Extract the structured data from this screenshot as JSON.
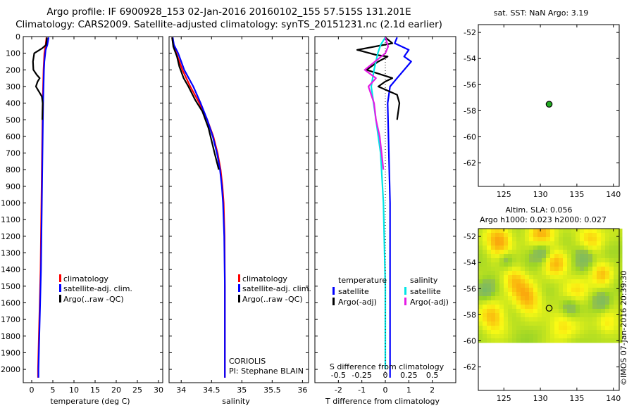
{
  "header": {
    "title_line1": "Argo profile: IF 6900928_153 02-Jan-2016 20160102_155 57.515S 131.201E",
    "title_line2": "Climatology: CARS2009. Satellite-adjusted climatology: synTS_20151231.nc (2.1d earlier)"
  },
  "colors": {
    "climatology": "#ff0000",
    "satellite": "#0000ff",
    "argo": "#000000",
    "sal_satellite": "#00e5e5",
    "sal_argo": "#e51be5",
    "float_marker": "#22aa22"
  },
  "credits": {
    "dac": "CORIOLIS",
    "pi": "PI: Stephane BLAIN",
    "imos": "©IMOS 07-Jan-2016 20:39:30"
  },
  "chart_data": [
    {
      "id": "temperature",
      "type": "line",
      "xlabel": "temperature (deg C)",
      "ylabel": "",
      "xlim": [
        -2,
        31
      ],
      "ylim": [
        2080,
        0
      ],
      "xticks": [
        0,
        5,
        10,
        15,
        20,
        25,
        30
      ],
      "yticks": [
        0,
        100,
        200,
        300,
        400,
        500,
        600,
        700,
        800,
        900,
        1000,
        1100,
        1200,
        1300,
        1400,
        1500,
        1600,
        1700,
        1800,
        1900,
        2000
      ],
      "legend": [
        "climatology",
        "satellite-adj. clim.",
        "Argo(..raw -QC)"
      ],
      "series": [
        {
          "name": "climatology",
          "color": "#ff0000",
          "points": [
            [
              3.5,
              5
            ],
            [
              3.3,
              50
            ],
            [
              3.0,
              100
            ],
            [
              2.8,
              200
            ],
            [
              2.7,
              300
            ],
            [
              2.6,
              400
            ],
            [
              2.5,
              600
            ],
            [
              2.4,
              800
            ],
            [
              2.3,
              1000
            ],
            [
              2.2,
              1200
            ],
            [
              2.1,
              1400
            ],
            [
              1.9,
              1600
            ],
            [
              1.7,
              1800
            ],
            [
              1.5,
              2000
            ],
            [
              1.5,
              2050
            ]
          ]
        },
        {
          "name": "satellite-adj. clim.",
          "color": "#0000ff",
          "points": [
            [
              4.0,
              5
            ],
            [
              3.7,
              50
            ],
            [
              3.3,
              80
            ],
            [
              3.0,
              150
            ],
            [
              2.9,
              200
            ],
            [
              2.8,
              300
            ],
            [
              2.7,
              400
            ],
            [
              2.6,
              600
            ],
            [
              2.5,
              800
            ],
            [
              2.4,
              1000
            ],
            [
              2.3,
              1200
            ],
            [
              2.2,
              1400
            ],
            [
              2.0,
              1600
            ],
            [
              1.8,
              1800
            ],
            [
              1.6,
              2000
            ],
            [
              1.6,
              2050
            ]
          ]
        },
        {
          "name": "Argo(..raw -QC)",
          "color": "#000000",
          "points": [
            [
              3.6,
              5
            ],
            [
              3.4,
              50
            ],
            [
              2.5,
              70
            ],
            [
              0.6,
              100
            ],
            [
              0.3,
              150
            ],
            [
              0.4,
              200
            ],
            [
              1.2,
              230
            ],
            [
              1.9,
              250
            ],
            [
              1.4,
              270
            ],
            [
              1.0,
              300
            ],
            [
              1.7,
              330
            ],
            [
              2.4,
              360
            ],
            [
              2.6,
              400
            ],
            [
              2.5,
              500
            ]
          ]
        }
      ]
    },
    {
      "id": "salinity",
      "type": "line",
      "xlabel": "salinity",
      "xlim": [
        33.8,
        36.1
      ],
      "ylim": [
        2080,
        0
      ],
      "xticks": [
        34,
        34.5,
        35,
        35.5,
        36
      ],
      "xticklabels": [
        "34",
        "34.5",
        "35",
        "35.5",
        "36"
      ],
      "legend": [
        "climatology",
        "satellite-adj. clim.",
        "Argo(..raw -QC)"
      ],
      "series": [
        {
          "name": "climatology",
          "color": "#ff0000",
          "points": [
            [
              33.85,
              5
            ],
            [
              33.87,
              50
            ],
            [
              33.92,
              100
            ],
            [
              34.02,
              200
            ],
            [
              34.15,
              300
            ],
            [
              34.3,
              400
            ],
            [
              34.43,
              500
            ],
            [
              34.53,
              600
            ],
            [
              34.6,
              700
            ],
            [
              34.65,
              800
            ],
            [
              34.68,
              900
            ],
            [
              34.7,
              1000
            ],
            [
              34.715,
              1200
            ],
            [
              34.72,
              1500
            ],
            [
              34.72,
              2000
            ],
            [
              34.72,
              2050
            ]
          ]
        },
        {
          "name": "satellite-adj. clim.",
          "color": "#0000ff",
          "points": [
            [
              33.86,
              5
            ],
            [
              33.88,
              50
            ],
            [
              33.95,
              100
            ],
            [
              34.05,
              200
            ],
            [
              34.2,
              300
            ],
            [
              34.32,
              400
            ],
            [
              34.43,
              500
            ],
            [
              34.52,
              600
            ],
            [
              34.59,
              700
            ],
            [
              34.64,
              800
            ],
            [
              34.67,
              900
            ],
            [
              34.69,
              1000
            ],
            [
              34.71,
              1200
            ],
            [
              34.72,
              1500
            ],
            [
              34.72,
              2000
            ],
            [
              34.72,
              2050
            ]
          ]
        },
        {
          "name": "Argo(..raw -QC)",
          "color": "#000000",
          "points": [
            [
              33.85,
              5
            ],
            [
              33.87,
              60
            ],
            [
              33.93,
              120
            ],
            [
              33.97,
              180
            ],
            [
              34.04,
              250
            ],
            [
              34.12,
              300
            ],
            [
              34.23,
              380
            ],
            [
              34.35,
              450
            ],
            [
              34.45,
              550
            ],
            [
              34.55,
              700
            ],
            [
              34.62,
              800
            ]
          ]
        }
      ]
    },
    {
      "id": "differences",
      "type": "line",
      "xlabel": "T difference from climatology",
      "x2label": "S difference from climatology",
      "xlim": [
        -3,
        3
      ],
      "x2lim": [
        -0.75,
        0.75
      ],
      "ylim": [
        2080,
        0
      ],
      "xticks": [
        -2,
        -1,
        0,
        1,
        2
      ],
      "x2ticks": [
        -0.5,
        -0.25,
        0,
        0.25,
        0.5
      ],
      "x2ticklabels": [
        "-0.5",
        "-0.25",
        "0",
        "0.25",
        "0.5"
      ],
      "legend_titles": [
        "temperature",
        "salinity"
      ],
      "legend": [
        "satellite",
        "Argo(-adj)",
        "satellite",
        "Argo(-adj)"
      ],
      "series": [
        {
          "name": "T satellite",
          "color": "#0000ff",
          "points": [
            [
              0.5,
              5
            ],
            [
              0.4,
              40
            ],
            [
              1.0,
              80
            ],
            [
              0.8,
              120
            ],
            [
              1.1,
              150
            ],
            [
              0.8,
              200
            ],
            [
              0.5,
              250
            ],
            [
              0.2,
              300
            ],
            [
              0.1,
              400
            ],
            [
              0.15,
              700
            ],
            [
              0.2,
              1000
            ],
            [
              0.2,
              1500
            ],
            [
              0.2,
              2000
            ],
            [
              0.2,
              2050
            ]
          ]
        },
        {
          "name": "T Argo(-adj)",
          "color": "#000000",
          "points": [
            [
              0.0,
              5
            ],
            [
              0.3,
              40
            ],
            [
              -1.2,
              80
            ],
            [
              -0.4,
              110
            ],
            [
              0.1,
              120
            ],
            [
              -0.3,
              150
            ],
            [
              -0.8,
              200
            ],
            [
              0.3,
              250
            ],
            [
              0.0,
              270
            ],
            [
              -0.3,
              300
            ],
            [
              0.5,
              350
            ],
            [
              0.6,
              400
            ],
            [
              0.5,
              500
            ]
          ]
        },
        {
          "name": "S satellite",
          "color": "#00e5e5",
          "points": [
            [
              0.0,
              5
            ],
            [
              -0.05,
              50
            ],
            [
              -0.08,
              100
            ],
            [
              -0.12,
              200
            ],
            [
              -0.15,
              300
            ],
            [
              -0.1,
              500
            ],
            [
              -0.05,
              700
            ],
            [
              -0.02,
              1000
            ],
            [
              0.0,
              1500
            ],
            [
              0.0,
              2000
            ]
          ]
        },
        {
          "name": "S Argo(-adj)",
          "color": "#e51be5",
          "points": [
            [
              0.0,
              5
            ],
            [
              0.03,
              60
            ],
            [
              0.0,
              100
            ],
            [
              -0.22,
              200
            ],
            [
              -0.1,
              250
            ],
            [
              -0.18,
              300
            ],
            [
              -0.12,
              400
            ],
            [
              -0.1,
              500
            ],
            [
              -0.06,
              600
            ],
            [
              -0.04,
              700
            ],
            [
              -0.02,
              800
            ]
          ]
        }
      ]
    },
    {
      "id": "location",
      "type": "scatter",
      "title": "sat. SST: NaN Argo: 3.19",
      "xlim": [
        121.5,
        140.8
      ],
      "ylim": [
        -63.8,
        -51.4
      ],
      "xticks": [
        125,
        130,
        135,
        140
      ],
      "yticks": [
        -52,
        -54,
        -56,
        -58,
        -60,
        -62
      ],
      "points": [
        [
          131.2,
          -57.5
        ]
      ]
    },
    {
      "id": "altimetry",
      "type": "heatmap",
      "title_line1": "Altim. SLA: 0.056",
      "title_line2": "Argo h1000: 0.023 h2000: 0.027",
      "xlim": [
        121.5,
        140.8
      ],
      "ylim": [
        -63.8,
        -51.4
      ],
      "data_ylim": [
        -60,
        -51.4
      ],
      "xticks": [
        125,
        130,
        135,
        140
      ],
      "yticks": [
        -52,
        -54,
        -56,
        -58,
        -60,
        -62
      ],
      "points": [
        [
          131.2,
          -57.5
        ]
      ]
    }
  ]
}
